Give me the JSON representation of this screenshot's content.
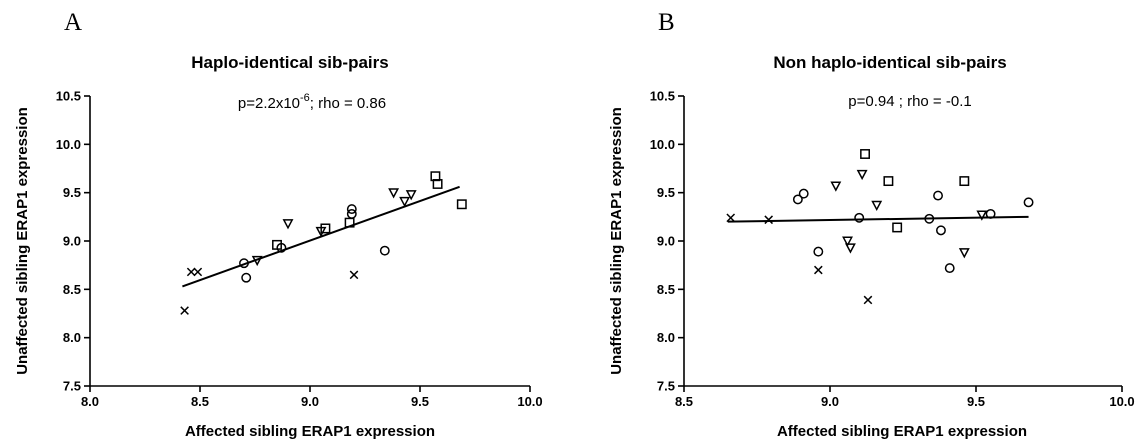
{
  "chart_data": [
    {
      "type": "scatter",
      "panel": "A",
      "title": "Haplo-identical sib-pairs",
      "annotation": "p=2.2x10^-6; rho = 0.86",
      "xlabel": "Affected sibling ERAP1 expression",
      "ylabel": "Unaffected sibling ERAP1 expression",
      "xlim": [
        8.0,
        10.0
      ],
      "ylim": [
        7.5,
        10.5
      ],
      "xticks": [
        "8.0",
        "8.5",
        "9.0",
        "9.5",
        "10.0"
      ],
      "yticks": [
        "7.5",
        "8.0",
        "8.5",
        "9.0",
        "9.5",
        "10.0",
        "10.5"
      ],
      "fit_line": {
        "x": [
          8.42,
          9.68
        ],
        "y": [
          8.53,
          9.56
        ]
      },
      "series": [
        {
          "marker": "cross",
          "x": [
            8.43,
            8.46,
            8.49,
            9.2
          ],
          "y": [
            8.28,
            8.68,
            8.68,
            8.65
          ]
        },
        {
          "marker": "circle",
          "x": [
            8.7,
            8.71,
            8.87,
            9.19,
            9.19,
            9.34
          ],
          "y": [
            8.77,
            8.62,
            8.93,
            9.28,
            9.33,
            8.9
          ]
        },
        {
          "marker": "triangle-down",
          "x": [
            8.76,
            8.9,
            9.05,
            9.38,
            9.43,
            9.46
          ],
          "y": [
            8.8,
            9.18,
            9.1,
            9.5,
            9.41,
            9.48
          ]
        },
        {
          "marker": "square",
          "x": [
            8.85,
            9.07,
            9.18,
            9.57,
            9.58,
            9.69
          ],
          "y": [
            8.96,
            9.13,
            9.19,
            9.67,
            9.59,
            9.38
          ]
        }
      ]
    },
    {
      "type": "scatter",
      "panel": "B",
      "title": "Non haplo-identical sib-pairs",
      "annotation": "p=0.94 ; rho = -0.1",
      "xlabel": "Affected sibling ERAP1 expression",
      "ylabel": "Unaffected sibling ERAP1 expression",
      "xlim": [
        8.5,
        10.0
      ],
      "ylim": [
        7.5,
        10.5
      ],
      "xticks": [
        "8.5",
        "9.0",
        "9.5",
        "10.0"
      ],
      "yticks": [
        "7.5",
        "8.0",
        "8.5",
        "9.0",
        "9.5",
        "10.0",
        "10.5"
      ],
      "fit_line": {
        "x": [
          8.65,
          9.68
        ],
        "y": [
          9.2,
          9.25
        ]
      },
      "series": [
        {
          "marker": "cross",
          "x": [
            8.66,
            8.79,
            8.96,
            9.13
          ],
          "y": [
            9.24,
            9.22,
            8.7,
            8.39
          ]
        },
        {
          "marker": "circle",
          "x": [
            8.89,
            8.91,
            8.96,
            9.1,
            9.34,
            9.37,
            9.38,
            9.41,
            9.55,
            9.68
          ],
          "y": [
            9.43,
            9.49,
            8.89,
            9.24,
            9.23,
            9.47,
            9.11,
            8.72,
            9.28,
            9.4
          ]
        },
        {
          "marker": "triangle-down",
          "x": [
            9.02,
            9.06,
            9.07,
            9.11,
            9.16,
            9.46,
            9.52
          ],
          "y": [
            9.57,
            9.0,
            8.93,
            9.69,
            9.37,
            8.88,
            9.27
          ]
        },
        {
          "marker": "square",
          "x": [
            9.12,
            9.2,
            9.23,
            9.46
          ],
          "y": [
            9.9,
            9.62,
            9.14,
            9.62
          ]
        }
      ]
    }
  ]
}
